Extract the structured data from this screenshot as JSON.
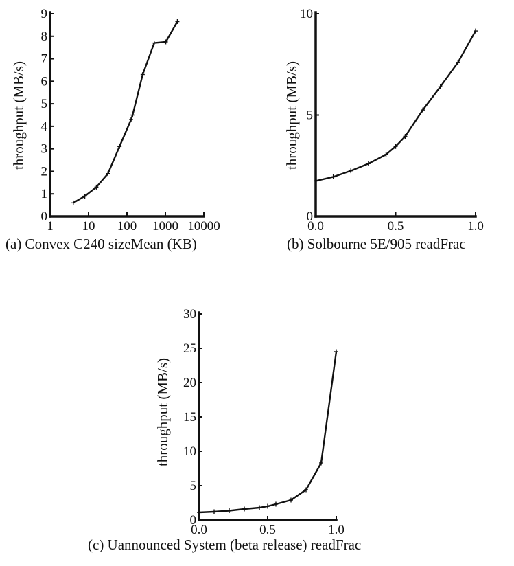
{
  "chart_data": [
    {
      "type": "line",
      "caption": "(a) Convex C240 sizeMean (KB)",
      "xlabel": "",
      "ylabel": "throughput (MB/s)",
      "xscale": "log",
      "xlim": [
        1,
        10000
      ],
      "ylim": [
        0,
        9
      ],
      "xticks": [
        "1",
        "10",
        "100",
        "1000",
        "10000"
      ],
      "yticks": [
        "0",
        "1",
        "2",
        "3",
        "4",
        "5",
        "6",
        "7",
        "8",
        "9"
      ],
      "x": [
        4,
        8,
        16,
        32,
        64,
        128,
        140,
        256,
        512,
        1024,
        2048
      ],
      "y": [
        0.6,
        0.9,
        1.3,
        1.9,
        3.1,
        4.3,
        4.5,
        6.3,
        7.7,
        7.75,
        8.65
      ],
      "grid": false
    },
    {
      "type": "line",
      "caption": "(b) Solbourne 5E/905 readFrac",
      "xlabel": "",
      "ylabel": "throughput (MB/s)",
      "xlim": [
        0,
        1
      ],
      "ylim": [
        0,
        10
      ],
      "xticks": [
        "0.0",
        "0.5",
        "1.0"
      ],
      "yticks": [
        "0",
        "5",
        "10"
      ],
      "x": [
        0.0,
        0.11,
        0.22,
        0.33,
        0.44,
        0.5,
        0.56,
        0.67,
        0.78,
        0.89,
        1.0
      ],
      "y": [
        1.75,
        1.95,
        2.25,
        2.6,
        3.05,
        3.45,
        3.95,
        5.25,
        6.4,
        7.6,
        9.15
      ],
      "grid": false
    },
    {
      "type": "line",
      "caption": "(c) Uannounced System (beta release) readFrac",
      "xlabel": "",
      "ylabel": "throughput (MB/s)",
      "xlim": [
        0,
        1
      ],
      "ylim": [
        0,
        30
      ],
      "xticks": [
        "0.0",
        "0.5",
        "1.0"
      ],
      "yticks": [
        "0",
        "5",
        "10",
        "15",
        "20",
        "25",
        "30"
      ],
      "x": [
        0.0,
        0.11,
        0.22,
        0.33,
        0.44,
        0.5,
        0.56,
        0.67,
        0.78,
        0.89,
        1.0
      ],
      "y": [
        1.1,
        1.2,
        1.35,
        1.6,
        1.8,
        2.0,
        2.3,
        2.9,
        4.4,
        8.3,
        24.5
      ],
      "grid": false
    }
  ]
}
